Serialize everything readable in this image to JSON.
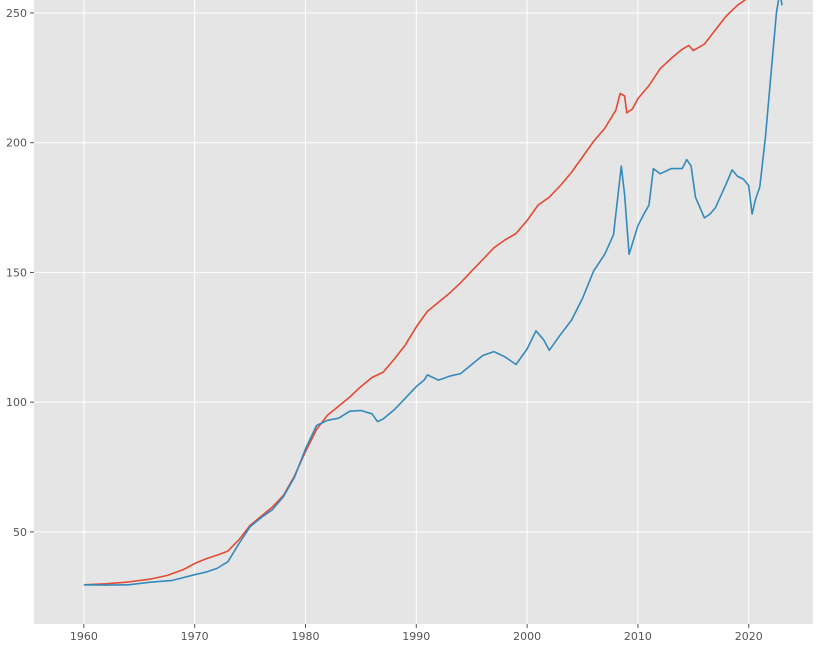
{
  "chart_data": {
    "type": "line",
    "title": "",
    "xlabel": "",
    "ylabel": "",
    "xlim": [
      1955.5,
      2025.8
    ],
    "ylim": [
      14.5,
      255
    ],
    "grid": true,
    "background": "#e5e5e5",
    "grid_color": "#ffffff",
    "x_ticks": [
      {
        "value": 1960,
        "label": "1960"
      },
      {
        "value": 1970,
        "label": "1970"
      },
      {
        "value": 1980,
        "label": "1980"
      },
      {
        "value": 1990,
        "label": "1990"
      },
      {
        "value": 2000,
        "label": "2000"
      },
      {
        "value": 2010,
        "label": "2010"
      },
      {
        "value": 2020,
        "label": "2020"
      }
    ],
    "y_ticks": [
      {
        "value": 50,
        "label": "50"
      },
      {
        "value": 100,
        "label": "100"
      },
      {
        "value": 150,
        "label": "150"
      },
      {
        "value": 200,
        "label": "200"
      },
      {
        "value": 250,
        "label": "250"
      }
    ],
    "series": [
      {
        "color": "#e24a33",
        "points": [
          [
            1960.0,
            29.6
          ],
          [
            1962.0,
            30.0
          ],
          [
            1964.0,
            30.7
          ],
          [
            1966.0,
            31.8
          ],
          [
            1967.5,
            33.2
          ],
          [
            1969.0,
            35.5
          ],
          [
            1970.0,
            37.8
          ],
          [
            1971.0,
            39.6
          ],
          [
            1972.0,
            41.0
          ],
          [
            1973.0,
            42.6
          ],
          [
            1974.0,
            47.0
          ],
          [
            1975.0,
            52.5
          ],
          [
            1976.0,
            56.0
          ],
          [
            1977.0,
            59.5
          ],
          [
            1978.0,
            64.0
          ],
          [
            1979.0,
            71.5
          ],
          [
            1980.0,
            81.0
          ],
          [
            1981.0,
            89.5
          ],
          [
            1982.0,
            95.0
          ],
          [
            1983.0,
            98.5
          ],
          [
            1984.0,
            102.0
          ],
          [
            1985.0,
            106.0
          ],
          [
            1986.0,
            109.5
          ],
          [
            1987.0,
            111.5
          ],
          [
            1988.0,
            116.5
          ],
          [
            1989.0,
            122.0
          ],
          [
            1990.0,
            129.0
          ],
          [
            1991.0,
            135.0
          ],
          [
            1992.0,
            138.5
          ],
          [
            1993.0,
            142.0
          ],
          [
            1994.0,
            146.0
          ],
          [
            1995.0,
            150.5
          ],
          [
            1996.0,
            155.0
          ],
          [
            1997.0,
            159.5
          ],
          [
            1998.0,
            162.5
          ],
          [
            1999.0,
            165.0
          ],
          [
            2000.0,
            170.0
          ],
          [
            2001.0,
            176.0
          ],
          [
            2002.0,
            179.0
          ],
          [
            2003.0,
            183.5
          ],
          [
            2004.0,
            188.5
          ],
          [
            2005.0,
            194.5
          ],
          [
            2006.0,
            200.5
          ],
          [
            2007.0,
            205.5
          ],
          [
            2008.0,
            212.5
          ],
          [
            2008.4,
            219.0
          ],
          [
            2008.8,
            218.0
          ],
          [
            2009.0,
            211.5
          ],
          [
            2009.5,
            213.0
          ],
          [
            2010.0,
            217.0
          ],
          [
            2011.0,
            222.0
          ],
          [
            2012.0,
            228.5
          ],
          [
            2013.0,
            232.5
          ],
          [
            2014.0,
            236.0
          ],
          [
            2014.6,
            237.5
          ],
          [
            2015.0,
            235.5
          ],
          [
            2016.0,
            238.0
          ],
          [
            2017.0,
            243.5
          ],
          [
            2018.0,
            249.0
          ],
          [
            2019.0,
            253.0
          ],
          [
            2020.0,
            256.0
          ]
        ]
      },
      {
        "color": "#348abd",
        "points": [
          [
            1960.0,
            29.6
          ],
          [
            1962.0,
            29.5
          ],
          [
            1964.0,
            29.6
          ],
          [
            1966.0,
            30.6
          ],
          [
            1968.0,
            31.3
          ],
          [
            1970.0,
            33.5
          ],
          [
            1971.0,
            34.5
          ],
          [
            1972.0,
            35.9
          ],
          [
            1973.0,
            38.5
          ],
          [
            1974.0,
            45.5
          ],
          [
            1975.0,
            52.0
          ],
          [
            1976.0,
            55.5
          ],
          [
            1977.0,
            58.5
          ],
          [
            1978.0,
            63.5
          ],
          [
            1979.0,
            71.0
          ],
          [
            1980.0,
            82.0
          ],
          [
            1981.0,
            91.0
          ],
          [
            1982.0,
            93.0
          ],
          [
            1983.0,
            93.8
          ],
          [
            1984.0,
            96.5
          ],
          [
            1985.0,
            96.8
          ],
          [
            1986.0,
            95.5
          ],
          [
            1986.5,
            92.5
          ],
          [
            1987.0,
            93.5
          ],
          [
            1988.0,
            97.0
          ],
          [
            1989.0,
            101.5
          ],
          [
            1990.0,
            106.0
          ],
          [
            1990.7,
            108.5
          ],
          [
            1991.0,
            110.5
          ],
          [
            1992.0,
            108.5
          ],
          [
            1993.0,
            110.0
          ],
          [
            1994.0,
            111.0
          ],
          [
            1995.0,
            114.5
          ],
          [
            1996.0,
            118.0
          ],
          [
            1997.0,
            119.5
          ],
          [
            1998.0,
            117.5
          ],
          [
            1999.0,
            114.5
          ],
          [
            2000.0,
            120.5
          ],
          [
            2000.8,
            127.5
          ],
          [
            2001.5,
            124.0
          ],
          [
            2002.0,
            120.0
          ],
          [
            2003.0,
            126.0
          ],
          [
            2004.0,
            131.5
          ],
          [
            2005.0,
            140.0
          ],
          [
            2006.0,
            150.5
          ],
          [
            2007.0,
            157.0
          ],
          [
            2007.8,
            164.5
          ],
          [
            2008.5,
            191.0
          ],
          [
            2008.8,
            180.0
          ],
          [
            2009.2,
            157.0
          ],
          [
            2010.0,
            168.0
          ],
          [
            2010.6,
            173.0
          ],
          [
            2011.0,
            176.0
          ],
          [
            2011.4,
            190.0
          ],
          [
            2012.0,
            188.0
          ],
          [
            2013.0,
            190.0
          ],
          [
            2014.0,
            190.0
          ],
          [
            2014.4,
            193.5
          ],
          [
            2014.8,
            191.0
          ],
          [
            2015.2,
            179.0
          ],
          [
            2016.0,
            171.0
          ],
          [
            2016.5,
            172.5
          ],
          [
            2017.0,
            175.0
          ],
          [
            2018.0,
            184.5
          ],
          [
            2018.5,
            189.5
          ],
          [
            2019.0,
            187.0
          ],
          [
            2019.5,
            186.0
          ],
          [
            2020.0,
            183.5
          ],
          [
            2020.3,
            172.5
          ],
          [
            2020.6,
            178.0
          ],
          [
            2021.0,
            183.0
          ],
          [
            2021.5,
            202.0
          ],
          [
            2022.0,
            226.0
          ],
          [
            2022.5,
            250.0
          ],
          [
            2022.8,
            258.0
          ],
          [
            2023.0,
            253.0
          ]
        ]
      }
    ]
  }
}
